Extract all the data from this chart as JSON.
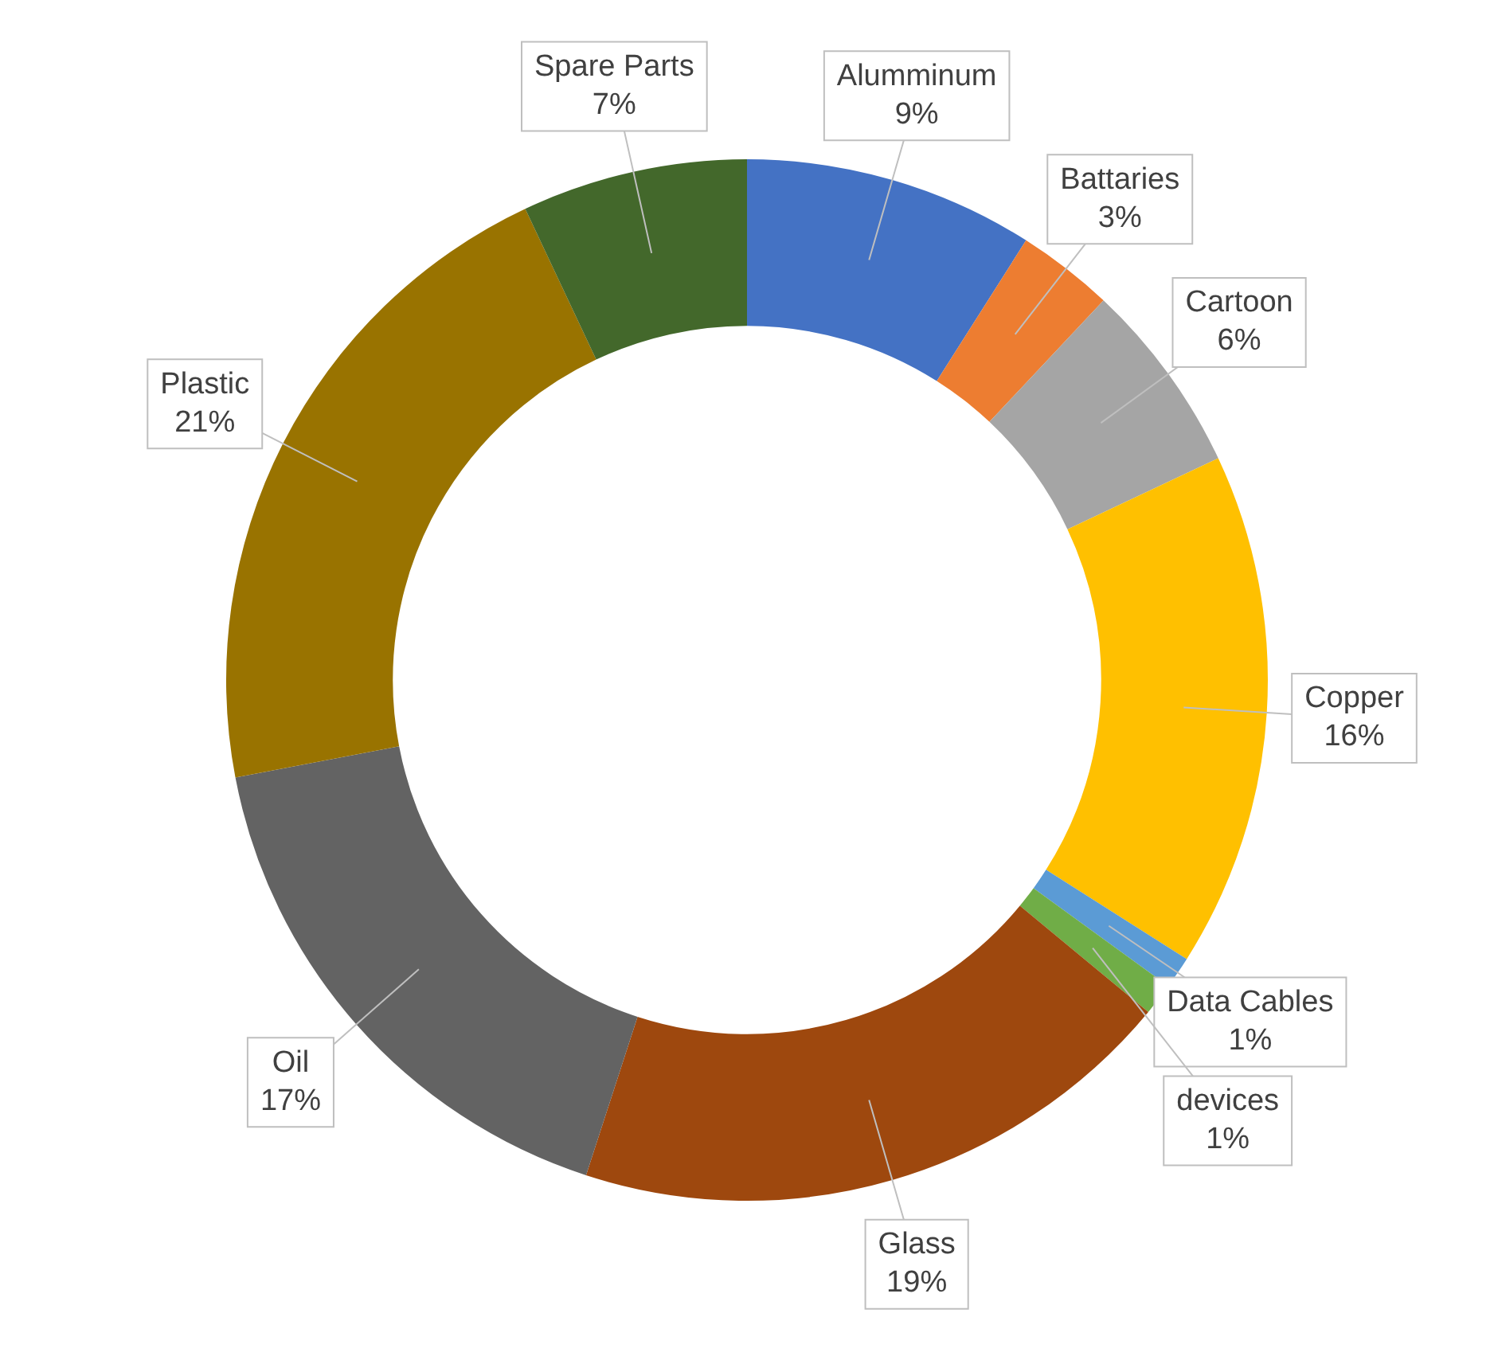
{
  "chart_data": {
    "type": "donut",
    "categories": [
      "Alumminum",
      "Battaries",
      "Cartoon",
      "Copper",
      "Data Cables",
      "devices",
      "Glass",
      "Oil",
      "Plastic",
      "Spare Parts"
    ],
    "values": [
      9,
      3,
      6,
      16,
      1,
      1,
      19,
      17,
      21,
      7
    ],
    "value_labels": [
      "9%",
      "3%",
      "6%",
      "16%",
      "1%",
      "1%",
      "19%",
      "17%",
      "21%",
      "7%"
    ],
    "colors": [
      "#4472c4",
      "#ed7d31",
      "#a5a5a5",
      "#ffc000",
      "#5b9bd5",
      "#70ad47",
      "#9e480e",
      "#636363",
      "#997300",
      "#43682b"
    ],
    "legend": false
  }
}
